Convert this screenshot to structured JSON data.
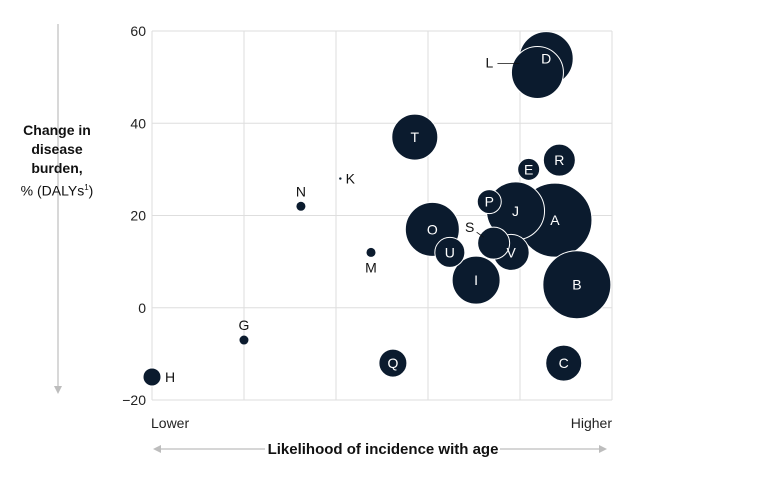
{
  "chart_data": {
    "type": "scatter",
    "title": "",
    "xlabel": "Likelihood of incidence with age",
    "x_low_label": "Lower",
    "x_high_label": "Higher",
    "ylabel_lines": [
      "Change in",
      "disease",
      "burden,"
    ],
    "ylabel_unit": "%  (DALYs",
    "ylabel_footnote": "1",
    "ylabel_close": ")",
    "ylim": [
      -20,
      60
    ],
    "yticks": [
      60,
      40,
      20,
      0,
      -20
    ],
    "ytick_labels": [
      "60",
      "40",
      "20",
      "0",
      "−20"
    ],
    "xlim": [
      0,
      10
    ],
    "grid": true,
    "bubble_color": "#0b1b2e",
    "points": [
      {
        "label": "H",
        "x": 0.0,
        "y": -15,
        "r": 9
      },
      {
        "label": "G",
        "x": 2.1,
        "y": -7,
        "r": 4.5
      },
      {
        "label": "N",
        "x": 3.4,
        "y": 22,
        "r": 4.5
      },
      {
        "label": "K",
        "x": 4.3,
        "y": 28,
        "r": 1.2
      },
      {
        "label": "M",
        "x": 5.0,
        "y": 12,
        "r": 4.5
      },
      {
        "label": "Q",
        "x": 5.5,
        "y": -12,
        "r": 14
      },
      {
        "label": "T",
        "x": 6.0,
        "y": 37,
        "r": 23
      },
      {
        "label": "O",
        "x": 6.4,
        "y": 17,
        "r": 27
      },
      {
        "label": "U",
        "x": 6.8,
        "y": 12,
        "r": 15
      },
      {
        "label": "I",
        "x": 7.4,
        "y": 6,
        "r": 24
      },
      {
        "label": "S",
        "x": 7.8,
        "y": 14,
        "r": 16
      },
      {
        "label": "P",
        "x": 7.7,
        "y": 23,
        "r": 12
      },
      {
        "label": "V",
        "x": 8.2,
        "y": 12,
        "r": 18
      },
      {
        "label": "J",
        "x": 8.3,
        "y": 21,
        "r": 29
      },
      {
        "label": "E",
        "x": 8.6,
        "y": 30,
        "r": 11
      },
      {
        "label": "L",
        "x": 8.8,
        "y": 51,
        "r": 26
      },
      {
        "label": "D",
        "x": 9.0,
        "y": 54,
        "r": 27
      },
      {
        "label": "R",
        "x": 9.3,
        "y": 32,
        "r": 16
      },
      {
        "label": "A",
        "x": 9.2,
        "y": 19,
        "r": 37
      },
      {
        "label": "B",
        "x": 9.7,
        "y": 5,
        "r": 34
      },
      {
        "label": "C",
        "x": 9.4,
        "y": -12,
        "r": 18
      }
    ]
  }
}
